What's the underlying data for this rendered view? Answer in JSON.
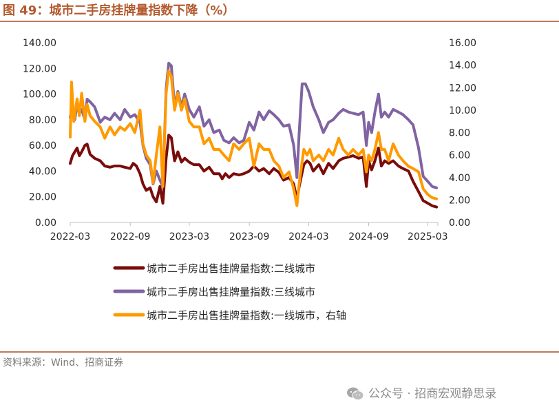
{
  "figure": {
    "title": "图 49：城市二手房挂牌量指数下降（%）",
    "source": "资料来源：Wind、招商证券",
    "watermark": "公众号 · 招商宏观静思录",
    "watermark_icon": "wechat-icon"
  },
  "colors": {
    "title": "#b35a2e",
    "rule": "#c0785a",
    "series_tier2": "#7a0c0c",
    "series_tier3": "#8064a2",
    "series_tier1": "#ff9a00"
  },
  "chart_data": {
    "type": "line",
    "x_tick_labels": [
      "2022-03",
      "2022-09",
      "2023-03",
      "2023-09",
      "2024-03",
      "2024-09",
      "2025-03"
    ],
    "x_range": [
      "2022-03",
      "2025-04"
    ],
    "y_left": {
      "min": 0,
      "max": 140,
      "step": 20,
      "tick_labels": [
        "0.00",
        "20.00",
        "40.00",
        "60.00",
        "80.00",
        "100.00",
        "120.00",
        "140.00"
      ]
    },
    "y_right": {
      "min": 0,
      "max": 16,
      "step": 2,
      "tick_labels": [
        "0.00",
        "2.00",
        "4.00",
        "6.00",
        "8.00",
        "10.00",
        "12.00",
        "14.00",
        "16.00"
      ]
    },
    "grid": false,
    "legend_position": "bottom",
    "series": [
      {
        "name": "城市二手房出售挂牌量指数:二线城市",
        "axis": "left",
        "color": "#7a0c0c",
        "points": [
          [
            "2022-03-01",
            46
          ],
          [
            "2022-03-08",
            52
          ],
          [
            "2022-03-15",
            55
          ],
          [
            "2022-03-22",
            58
          ],
          [
            "2022-03-29",
            52
          ],
          [
            "2022-04-05",
            55
          ],
          [
            "2022-04-15",
            60
          ],
          [
            "2022-04-22",
            61
          ],
          [
            "2022-05-01",
            53
          ],
          [
            "2022-05-15",
            50
          ],
          [
            "2022-06-01",
            48
          ],
          [
            "2022-06-15",
            44
          ],
          [
            "2022-07-01",
            43
          ],
          [
            "2022-07-15",
            44
          ],
          [
            "2022-08-01",
            44
          ],
          [
            "2022-08-15",
            43
          ],
          [
            "2022-09-01",
            42
          ],
          [
            "2022-09-10",
            46
          ],
          [
            "2022-09-20",
            44
          ],
          [
            "2022-10-01",
            38
          ],
          [
            "2022-10-10",
            30
          ],
          [
            "2022-10-20",
            25
          ],
          [
            "2022-11-01",
            27
          ],
          [
            "2022-11-10",
            20
          ],
          [
            "2022-11-20",
            16
          ],
          [
            "2022-12-01",
            28
          ],
          [
            "2022-12-10",
            15
          ],
          [
            "2022-12-20",
            50
          ],
          [
            "2022-12-28",
            68
          ],
          [
            "2023-01-05",
            66
          ],
          [
            "2023-01-15",
            48
          ],
          [
            "2023-01-25",
            55
          ],
          [
            "2023-02-05",
            47
          ],
          [
            "2023-02-15",
            50
          ],
          [
            "2023-03-01",
            47
          ],
          [
            "2023-03-15",
            45
          ],
          [
            "2023-04-01",
            45
          ],
          [
            "2023-04-15",
            40
          ],
          [
            "2023-05-01",
            43
          ],
          [
            "2023-05-15",
            38
          ],
          [
            "2023-06-01",
            38
          ],
          [
            "2023-06-10",
            34
          ],
          [
            "2023-06-20",
            38
          ],
          [
            "2023-07-01",
            35
          ],
          [
            "2023-07-15",
            38
          ],
          [
            "2023-08-01",
            37
          ],
          [
            "2023-08-15",
            38
          ],
          [
            "2023-09-01",
            40
          ],
          [
            "2023-09-15",
            44
          ],
          [
            "2023-10-01",
            40
          ],
          [
            "2023-10-15",
            42
          ],
          [
            "2023-11-01",
            38
          ],
          [
            "2023-11-15",
            42
          ],
          [
            "2023-12-01",
            39
          ],
          [
            "2023-12-15",
            33
          ],
          [
            "2024-01-01",
            35
          ],
          [
            "2024-01-15",
            30
          ],
          [
            "2024-01-25",
            18
          ],
          [
            "2024-02-01",
            28
          ],
          [
            "2024-02-15",
            45
          ],
          [
            "2024-02-25",
            48
          ],
          [
            "2024-03-05",
            46
          ],
          [
            "2024-03-15",
            40
          ],
          [
            "2024-04-01",
            45
          ],
          [
            "2024-04-15",
            38
          ],
          [
            "2024-05-01",
            46
          ],
          [
            "2024-05-15",
            42
          ],
          [
            "2024-06-01",
            48
          ],
          [
            "2024-06-15",
            50
          ],
          [
            "2024-07-01",
            51
          ],
          [
            "2024-07-15",
            52
          ],
          [
            "2024-08-01",
            50
          ],
          [
            "2024-08-15",
            51
          ],
          [
            "2024-08-25",
            28
          ],
          [
            "2024-09-01",
            48
          ],
          [
            "2024-09-10",
            41
          ],
          [
            "2024-09-20",
            48
          ],
          [
            "2024-10-01",
            58
          ],
          [
            "2024-10-10",
            44
          ],
          [
            "2024-10-20",
            48
          ],
          [
            "2024-11-01",
            46
          ],
          [
            "2024-11-15",
            48
          ],
          [
            "2024-12-01",
            44
          ],
          [
            "2024-12-15",
            42
          ],
          [
            "2025-01-01",
            40
          ],
          [
            "2025-01-15",
            32
          ],
          [
            "2025-02-01",
            24
          ],
          [
            "2025-02-15",
            17
          ],
          [
            "2025-03-01",
            15
          ],
          [
            "2025-03-15",
            13
          ],
          [
            "2025-03-28",
            12
          ]
        ]
      },
      {
        "name": "城市二手房出售挂牌量指数:三线城市",
        "axis": "left",
        "color": "#8064a2",
        "points": [
          [
            "2022-03-01",
            82
          ],
          [
            "2022-03-08",
            90
          ],
          [
            "2022-03-15",
            80
          ],
          [
            "2022-03-22",
            92
          ],
          [
            "2022-03-29",
            85
          ],
          [
            "2022-04-05",
            88
          ],
          [
            "2022-04-15",
            80
          ],
          [
            "2022-04-22",
            96
          ],
          [
            "2022-05-01",
            94
          ],
          [
            "2022-05-15",
            90
          ],
          [
            "2022-06-01",
            78
          ],
          [
            "2022-06-15",
            82
          ],
          [
            "2022-07-01",
            80
          ],
          [
            "2022-07-15",
            85
          ],
          [
            "2022-08-01",
            80
          ],
          [
            "2022-08-15",
            88
          ],
          [
            "2022-09-01",
            82
          ],
          [
            "2022-09-15",
            84
          ],
          [
            "2022-10-01",
            78
          ],
          [
            "2022-10-10",
            60
          ],
          [
            "2022-10-20",
            50
          ],
          [
            "2022-11-01",
            45
          ],
          [
            "2022-11-10",
            30
          ],
          [
            "2022-11-20",
            40
          ],
          [
            "2022-12-01",
            33
          ],
          [
            "2022-12-10",
            28
          ],
          [
            "2022-12-20",
            104
          ],
          [
            "2022-12-28",
            124
          ],
          [
            "2023-01-05",
            122
          ],
          [
            "2023-01-15",
            90
          ],
          [
            "2023-01-25",
            102
          ],
          [
            "2023-02-05",
            90
          ],
          [
            "2023-02-15",
            100
          ],
          [
            "2023-03-01",
            88
          ],
          [
            "2023-03-15",
            82
          ],
          [
            "2023-04-01",
            90
          ],
          [
            "2023-04-15",
            75
          ],
          [
            "2023-05-01",
            80
          ],
          [
            "2023-05-15",
            70
          ],
          [
            "2023-06-01",
            72
          ],
          [
            "2023-06-15",
            64
          ],
          [
            "2023-07-01",
            62
          ],
          [
            "2023-07-15",
            66
          ],
          [
            "2023-08-01",
            62
          ],
          [
            "2023-08-15",
            64
          ],
          [
            "2023-09-01",
            78
          ],
          [
            "2023-09-15",
            72
          ],
          [
            "2023-10-01",
            86
          ],
          [
            "2023-10-15",
            80
          ],
          [
            "2023-11-01",
            87
          ],
          [
            "2023-11-15",
            84
          ],
          [
            "2023-12-01",
            80
          ],
          [
            "2023-12-15",
            75
          ],
          [
            "2024-01-01",
            76
          ],
          [
            "2024-01-15",
            60
          ],
          [
            "2024-01-25",
            35
          ],
          [
            "2024-02-01",
            70
          ],
          [
            "2024-02-10",
            108
          ],
          [
            "2024-02-20",
            108
          ],
          [
            "2024-03-01",
            102
          ],
          [
            "2024-03-15",
            90
          ],
          [
            "2024-04-01",
            80
          ],
          [
            "2024-04-15",
            70
          ],
          [
            "2024-05-01",
            78
          ],
          [
            "2024-05-15",
            80
          ],
          [
            "2024-06-01",
            85
          ],
          [
            "2024-06-15",
            88
          ],
          [
            "2024-07-01",
            86
          ],
          [
            "2024-07-15",
            85
          ],
          [
            "2024-08-01",
            84
          ],
          [
            "2024-08-15",
            86
          ],
          [
            "2024-08-25",
            60
          ],
          [
            "2024-09-01",
            78
          ],
          [
            "2024-09-10",
            70
          ],
          [
            "2024-09-20",
            86
          ],
          [
            "2024-10-01",
            100
          ],
          [
            "2024-10-10",
            82
          ],
          [
            "2024-10-20",
            86
          ],
          [
            "2024-11-01",
            82
          ],
          [
            "2024-11-15",
            88
          ],
          [
            "2024-12-01",
            86
          ],
          [
            "2024-12-15",
            84
          ],
          [
            "2025-01-01",
            80
          ],
          [
            "2025-01-15",
            76
          ],
          [
            "2025-02-01",
            58
          ],
          [
            "2025-02-15",
            36
          ],
          [
            "2025-03-01",
            32
          ],
          [
            "2025-03-15",
            28
          ],
          [
            "2025-03-28",
            27
          ]
        ]
      },
      {
        "name": "城市二手房出售挂牌量指数:一线城市，右轴",
        "axis": "right",
        "color": "#ff9a00",
        "points": [
          [
            "2022-03-01",
            7.6
          ],
          [
            "2022-03-05",
            12.5
          ],
          [
            "2022-03-12",
            9.0
          ],
          [
            "2022-03-22",
            11.0
          ],
          [
            "2022-03-29",
            9.5
          ],
          [
            "2022-04-05",
            11.5
          ],
          [
            "2022-04-15",
            9.0
          ],
          [
            "2022-04-22",
            10.5
          ],
          [
            "2022-05-01",
            9.5
          ],
          [
            "2022-05-15",
            9.0
          ],
          [
            "2022-06-01",
            8.5
          ],
          [
            "2022-06-15",
            7.5
          ],
          [
            "2022-07-01",
            8.5
          ],
          [
            "2022-07-15",
            7.8
          ],
          [
            "2022-08-01",
            8.5
          ],
          [
            "2022-08-15",
            8.2
          ],
          [
            "2022-09-01",
            8.8
          ],
          [
            "2022-09-15",
            8.0
          ],
          [
            "2022-10-01",
            10.0
          ],
          [
            "2022-10-10",
            7.0
          ],
          [
            "2022-10-20",
            6.0
          ],
          [
            "2022-11-01",
            5.5
          ],
          [
            "2022-11-10",
            3.5
          ],
          [
            "2022-11-20",
            6.0
          ],
          [
            "2022-12-01",
            8.5
          ],
          [
            "2022-12-10",
            3.2
          ],
          [
            "2022-12-20",
            11.5
          ],
          [
            "2022-12-28",
            13.5
          ],
          [
            "2023-01-05",
            13.0
          ],
          [
            "2023-01-15",
            10.0
          ],
          [
            "2023-01-25",
            11.5
          ],
          [
            "2023-02-05",
            10.0
          ],
          [
            "2023-02-15",
            11.0
          ],
          [
            "2023-03-01",
            9.0
          ],
          [
            "2023-03-15",
            8.5
          ],
          [
            "2023-04-01",
            8.5
          ],
          [
            "2023-04-15",
            7.0
          ],
          [
            "2023-05-01",
            7.5
          ],
          [
            "2023-05-15",
            6.5
          ],
          [
            "2023-06-01",
            6.5
          ],
          [
            "2023-06-15",
            6.0
          ],
          [
            "2023-07-01",
            5.5
          ],
          [
            "2023-07-15",
            7.0
          ],
          [
            "2023-08-01",
            6.5
          ],
          [
            "2023-08-15",
            7.0
          ],
          [
            "2023-09-01",
            7.5
          ],
          [
            "2023-09-15",
            5.0
          ],
          [
            "2023-10-01",
            7.0
          ],
          [
            "2023-10-15",
            6.5
          ],
          [
            "2023-11-01",
            6.5
          ],
          [
            "2023-11-15",
            5.5
          ],
          [
            "2023-12-01",
            5.0
          ],
          [
            "2023-12-15",
            4.0
          ],
          [
            "2024-01-01",
            4.5
          ],
          [
            "2024-01-15",
            3.0
          ],
          [
            "2024-01-25",
            1.5
          ],
          [
            "2024-02-01",
            3.5
          ],
          [
            "2024-02-15",
            6.5
          ],
          [
            "2024-02-25",
            6.0
          ],
          [
            "2024-03-05",
            6.5
          ],
          [
            "2024-03-15",
            5.5
          ],
          [
            "2024-04-01",
            6.0
          ],
          [
            "2024-04-15",
            5.5
          ],
          [
            "2024-05-01",
            6.5
          ],
          [
            "2024-05-15",
            6.0
          ],
          [
            "2024-06-01",
            7.5
          ],
          [
            "2024-06-15",
            6.5
          ],
          [
            "2024-07-01",
            6.0
          ],
          [
            "2024-07-15",
            6.5
          ],
          [
            "2024-08-01",
            6.0
          ],
          [
            "2024-08-15",
            6.5
          ],
          [
            "2024-08-25",
            4.5
          ],
          [
            "2024-09-01",
            6.0
          ],
          [
            "2024-09-10",
            5.5
          ],
          [
            "2024-09-20",
            6.5
          ],
          [
            "2024-10-01",
            8.0
          ],
          [
            "2024-10-10",
            6.5
          ],
          [
            "2024-10-20",
            6.5
          ],
          [
            "2024-11-01",
            5.5
          ],
          [
            "2024-11-15",
            7.0
          ],
          [
            "2024-12-01",
            6.0
          ],
          [
            "2024-12-15",
            5.5
          ],
          [
            "2025-01-01",
            5.0
          ],
          [
            "2025-01-15",
            4.8
          ],
          [
            "2025-02-01",
            4.5
          ],
          [
            "2025-02-15",
            3.0
          ],
          [
            "2025-03-01",
            2.5
          ],
          [
            "2025-03-15",
            2.2
          ],
          [
            "2025-03-28",
            2.1
          ]
        ]
      }
    ]
  }
}
